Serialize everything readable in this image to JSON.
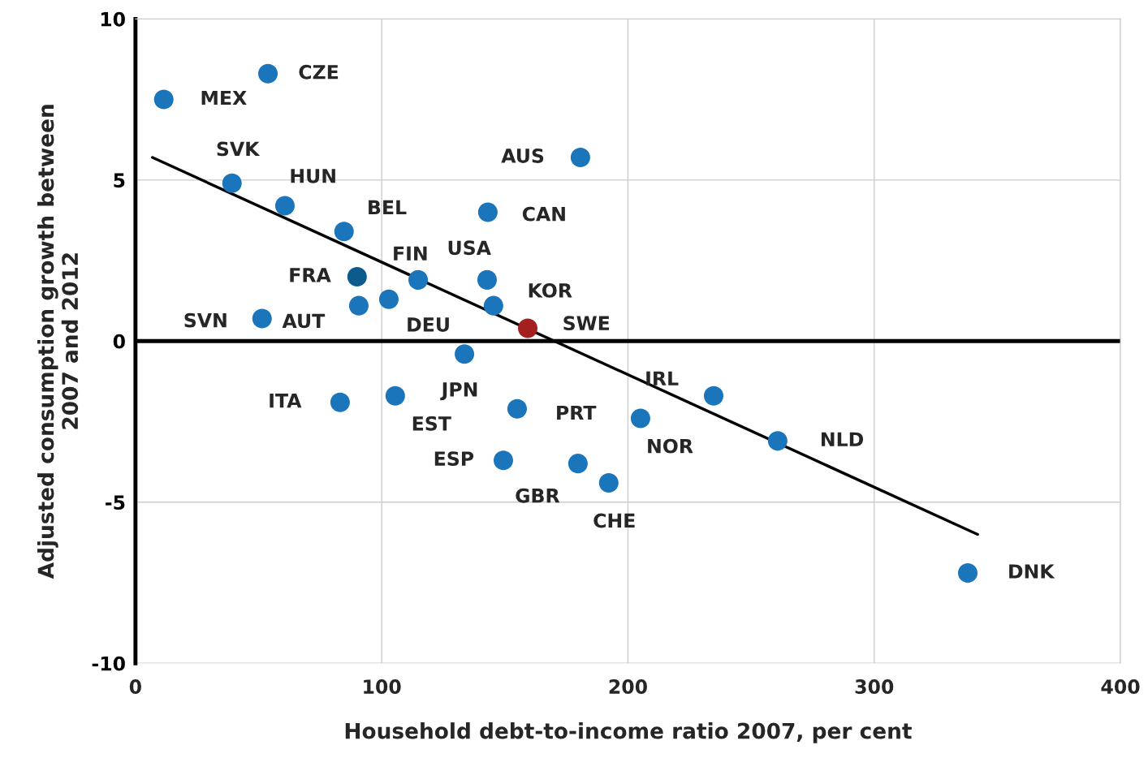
{
  "chart_data": {
    "type": "scatter",
    "xlabel": "Household debt-to-income ratio 2007, per cent",
    "ylabel": "Adjusted consumption growth between\n2007 and 2012",
    "xlim": [
      0,
      400
    ],
    "xticks": [
      0,
      100,
      200,
      300,
      400
    ],
    "ylim": [
      -10,
      10
    ],
    "yticks": [
      -10,
      -5,
      0,
      5,
      10
    ],
    "grid": true,
    "legend": false,
    "series": [
      {
        "marker": "circle",
        "x": [
          11.5,
          53.8,
          39.2,
          60.7,
          84.7,
          90.0,
          114.8,
          142.8,
          145.4,
          102.9,
          90.7,
          51.4,
          159.3,
          143.1,
          180.7,
          133.6,
          83.1,
          105.5,
          155.0,
          149.4,
          179.7,
          192.2,
          205.1,
          234.8,
          260.8,
          338.0
        ],
        "values": [
          7.5,
          8.3,
          4.9,
          4.2,
          3.4,
          2.0,
          1.9,
          1.9,
          1.1,
          1.3,
          1.1,
          0.7,
          0.4,
          4.0,
          5.7,
          -0.4,
          -1.9,
          -1.7,
          -2.1,
          -3.7,
          -3.8,
          -4.4,
          -2.4,
          -1.7,
          -3.1,
          -7.2
        ],
        "colors": [
          "#1b75bb",
          "#1b75bb",
          "#1b75bb",
          "#1b75bb",
          "#1b75bb",
          "#0d5b8c",
          "#1b75bb",
          "#1b75bb",
          "#1b75bb",
          "#1b75bb",
          "#1b75bb",
          "#1b75bb",
          "#a3201f",
          "#1b75bb",
          "#1b75bb",
          "#1b75bb",
          "#1b75bb",
          "#1b75bb",
          "#1b75bb",
          "#1b75bb",
          "#1b75bb",
          "#1b75bb",
          "#1b75bb",
          "#1b75bb",
          "#1b75bb",
          "#1b75bb"
        ]
      },
      {
        "type": "line",
        "color": "#000000",
        "line_style": "solid",
        "x": [
          6.9,
          342.0
        ],
        "values": [
          5.7,
          -6.0
        ]
      }
    ],
    "ref_lines": [
      {
        "axis": "y",
        "value": 0,
        "color": "#000000"
      }
    ],
    "annotations": [
      {
        "text": "MEX",
        "x": 11.5,
        "y": 7.5
      },
      {
        "text": "CZE",
        "x": 53.8,
        "y": 8.3
      },
      {
        "text": "SVK",
        "x": 39.2,
        "y": 4.9
      },
      {
        "text": "HUN",
        "x": 60.7,
        "y": 4.2
      },
      {
        "text": "BEL",
        "x": 84.7,
        "y": 3.4
      },
      {
        "text": "FRA",
        "x": 90.0,
        "y": 2.0
      },
      {
        "text": "FIN",
        "x": 114.8,
        "y": 1.9
      },
      {
        "text": "USA",
        "x": 142.8,
        "y": 1.9
      },
      {
        "text": "KOR",
        "x": 145.4,
        "y": 1.1
      },
      {
        "text": "DEU",
        "x": 102.9,
        "y": 1.3
      },
      {
        "text": "AUT",
        "x": 90.7,
        "y": 1.1
      },
      {
        "text": "SVN",
        "x": 51.4,
        "y": 0.7
      },
      {
        "text": "SWE",
        "x": 159.3,
        "y": 0.4
      },
      {
        "text": "CAN",
        "x": 143.1,
        "y": 4.0
      },
      {
        "text": "AUS",
        "x": 180.7,
        "y": 5.7
      },
      {
        "text": "JPN",
        "x": 133.6,
        "y": -0.4
      },
      {
        "text": "ITA",
        "x": 83.1,
        "y": -1.9
      },
      {
        "text": "EST",
        "x": 105.5,
        "y": -1.7
      },
      {
        "text": "PRT",
        "x": 155.0,
        "y": -2.1
      },
      {
        "text": "ESP",
        "x": 149.4,
        "y": -3.7
      },
      {
        "text": "GBR",
        "x": 179.7,
        "y": -3.8
      },
      {
        "text": "CHE",
        "x": 192.2,
        "y": -4.4
      },
      {
        "text": "NOR",
        "x": 205.1,
        "y": -2.4
      },
      {
        "text": "IRL",
        "x": 234.8,
        "y": -1.7
      },
      {
        "text": "NLD",
        "x": 260.8,
        "y": -3.1
      },
      {
        "text": "DNK",
        "x": 338.0,
        "y": -7.2
      }
    ]
  }
}
